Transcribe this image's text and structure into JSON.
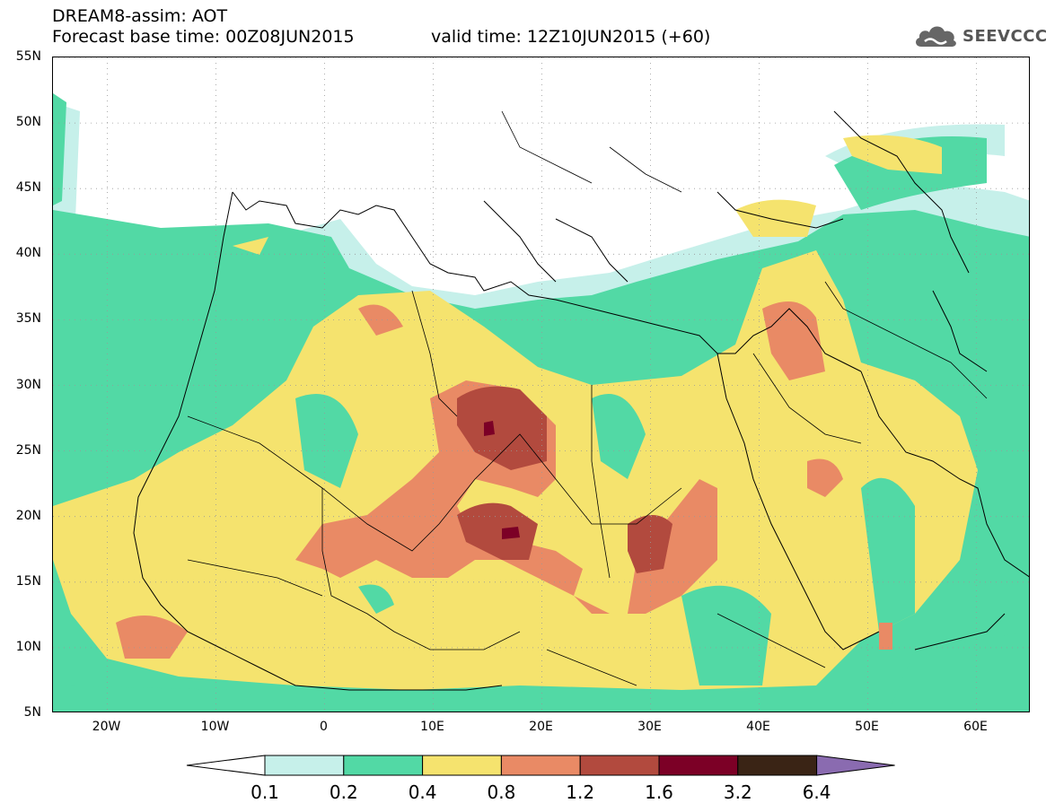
{
  "title": {
    "line1": "DREAM8-assim: AOT",
    "base_time": "Forecast base time: 00Z08JUN2015",
    "valid_time": "valid time: 12Z10JUN2015 (+60)"
  },
  "logo": {
    "text": "SEEVCCC",
    "icon": "cloud-icon"
  },
  "map": {
    "lon_range": [
      -25,
      65
    ],
    "lat_range": [
      5,
      55
    ],
    "lat_ticks": [
      {
        "value": 55,
        "label": "55N"
      },
      {
        "value": 50,
        "label": "50N"
      },
      {
        "value": 45,
        "label": "45N"
      },
      {
        "value": 40,
        "label": "40N"
      },
      {
        "value": 35,
        "label": "35N"
      },
      {
        "value": 30,
        "label": "30N"
      },
      {
        "value": 25,
        "label": "25N"
      },
      {
        "value": 20,
        "label": "20N"
      },
      {
        "value": 15,
        "label": "15N"
      },
      {
        "value": 10,
        "label": "10N"
      },
      {
        "value": 5,
        "label": "5N"
      }
    ],
    "lon_ticks": [
      {
        "value": -20,
        "label": "20W"
      },
      {
        "value": -10,
        "label": "10W"
      },
      {
        "value": 0,
        "label": "0"
      },
      {
        "value": 10,
        "label": "10E"
      },
      {
        "value": 20,
        "label": "20E"
      },
      {
        "value": 30,
        "label": "30E"
      },
      {
        "value": 40,
        "label": "40E"
      },
      {
        "value": 50,
        "label": "50E"
      },
      {
        "value": 60,
        "label": "60E"
      }
    ],
    "grid": true
  },
  "colorbar": {
    "levels": [
      "0.1",
      "0.2",
      "0.4",
      "0.8",
      "1.2",
      "1.6",
      "3.2",
      "6.4"
    ],
    "colors": [
      "#ffffff",
      "#c6f0ea",
      "#52d9a5",
      "#f5e36e",
      "#e98a65",
      "#b24a3e",
      "#7c0026",
      "#3a2415",
      "#8a6bb0"
    ]
  }
}
